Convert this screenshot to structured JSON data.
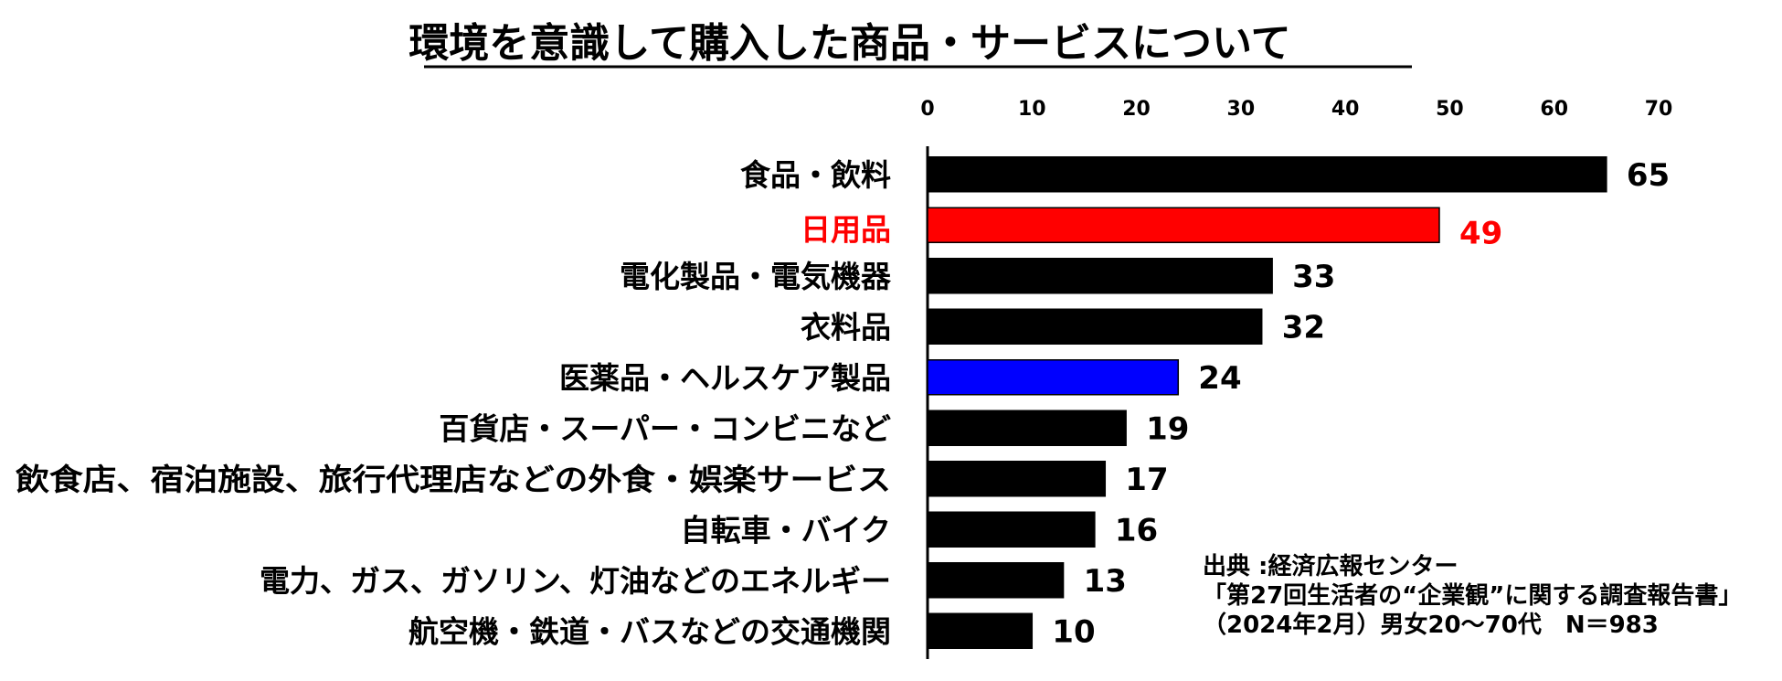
{
  "chart_data": {
    "type": "bar",
    "orientation": "horizontal",
    "title": "環境を意識して購入した商品・サービスについて",
    "categories": [
      "食品・飲料",
      "日用品",
      "電化製品・電気機器",
      "衣料品",
      "医薬品・ヘルスケア製品",
      "百貨店・スーパー・コンビニなど",
      "飲食店、宿泊施設、旅行代理店などの外食・娯楽サービス",
      "自転車・バイク",
      "電力、ガス、ガソリン、灯油などのエネルギー",
      "航空機・鉄道・バスなどの交通機関"
    ],
    "values": [
      65,
      49,
      33,
      32,
      24,
      19,
      17,
      16,
      13,
      10
    ],
    "bar_colors": [
      "#000000",
      "#ff0000",
      "#000000",
      "#000000",
      "#0000ff",
      "#000000",
      "#000000",
      "#000000",
      "#000000",
      "#000000"
    ],
    "label_colors": [
      "#000000",
      "#ff0000",
      "#000000",
      "#000000",
      "#000000",
      "#000000",
      "#000000",
      "#000000",
      "#000000",
      "#000000"
    ],
    "highlight_index": 1,
    "xlim": [
      0,
      70
    ],
    "xticks": [
      0,
      10,
      20,
      30,
      40,
      50,
      60,
      70
    ],
    "x_axis_position": "top",
    "grid": false,
    "xlabel": "",
    "ylabel": ""
  },
  "source": {
    "line1": "出典 :経済広報センター",
    "line2": "「第27回生活者の“企業観”に関する調査報告書」",
    "line3": "（2024年2月）男女20～70代　N＝983"
  }
}
